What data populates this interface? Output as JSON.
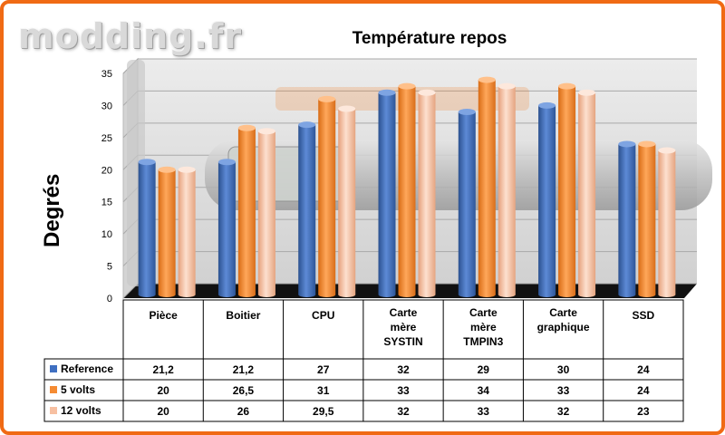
{
  "watermark": {
    "logo_text": "modding.fr"
  },
  "chart_data": {
    "type": "bar",
    "title": "Température repos",
    "xlabel": "",
    "ylabel": "Degrés",
    "ylim": [
      0,
      35
    ],
    "yticks": [
      0,
      5,
      10,
      15,
      20,
      25,
      30,
      35
    ],
    "grid": true,
    "legend_placement": "data-table-left",
    "categories": [
      [
        "Pièce"
      ],
      [
        "Boitier"
      ],
      [
        "CPU"
      ],
      [
        "Carte",
        "mère",
        "SYSTIN"
      ],
      [
        "Carte",
        "mère",
        "TMPIN3"
      ],
      [
        "Carte",
        "graphique"
      ],
      [
        "SSD"
      ]
    ],
    "series": [
      {
        "name": "Reference",
        "color": "#3f6fc1",
        "values": [
          21.2,
          21.2,
          27,
          32,
          29,
          30,
          24
        ],
        "labels": [
          "21,2",
          "21,2",
          "27",
          "32",
          "29",
          "30",
          "24"
        ]
      },
      {
        "name": "5 volts",
        "color": "#f58b32",
        "values": [
          20,
          26.5,
          31,
          33,
          34,
          33,
          24
        ],
        "labels": [
          "20",
          "26,5",
          "31",
          "33",
          "34",
          "33",
          "24"
        ]
      },
      {
        "name": "12 volts",
        "color": "#f7c0a2",
        "values": [
          20,
          26,
          29.5,
          32,
          33,
          32,
          23
        ],
        "labels": [
          "20",
          "26",
          "29,5",
          "32",
          "33",
          "32",
          "23"
        ]
      }
    ]
  }
}
